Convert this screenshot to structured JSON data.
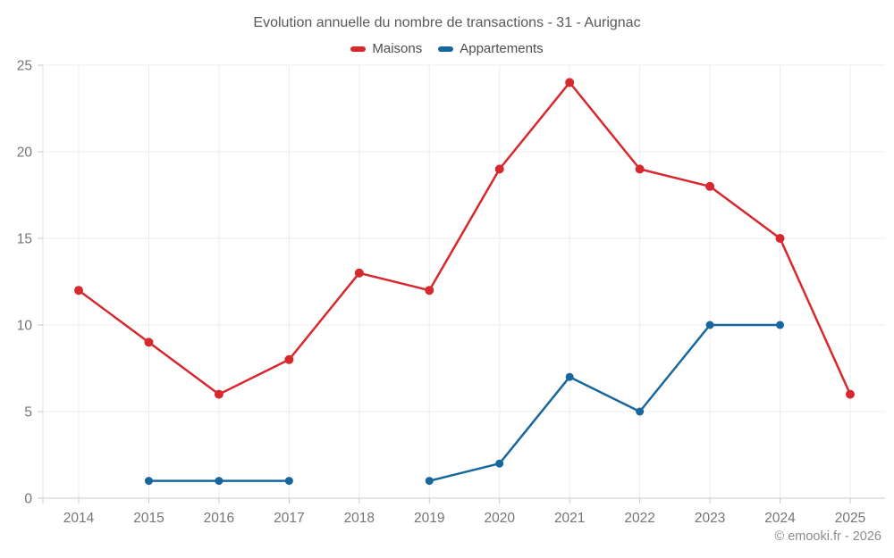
{
  "header": {
    "title": "Evolution annuelle du nombre de transactions - 31 - Aurignac"
  },
  "legend": [
    {
      "label": "Maisons",
      "color": "#d7282e"
    },
    {
      "label": "Appartements",
      "color": "#17679e"
    }
  ],
  "footer": {
    "copyright": "© emooki.fr - 2026"
  },
  "colors": {
    "grid": "#ececec",
    "axis_line": "#c9c9c9",
    "left_boundary": "#e0e0e0",
    "tick": "#c9c9c9",
    "tick_label": "#757575",
    "maisons_red": "#d7282e",
    "appartements_blue": "#17679e"
  },
  "chart_data": {
    "type": "line",
    "title": "Evolution annuelle du nombre de transactions - 31 - Aurignac",
    "xlabel": "",
    "ylabel": "",
    "x": [
      2014,
      2015,
      2016,
      2017,
      2018,
      2019,
      2020,
      2021,
      2022,
      2023,
      2024,
      2025
    ],
    "series": [
      {
        "name": "Maisons",
        "color": "#d7282e",
        "values": [
          12,
          9,
          6,
          8,
          13,
          12,
          19,
          24,
          19,
          18,
          15,
          6
        ]
      },
      {
        "name": "Appartements",
        "color": "#17679e",
        "values": [
          null,
          1,
          1,
          1,
          null,
          1,
          2,
          7,
          5,
          10,
          10,
          null
        ]
      }
    ],
    "ylim": [
      0,
      25
    ],
    "yticks": [
      0,
      5,
      10,
      15,
      20,
      25
    ],
    "grid": true,
    "legend_position": "top"
  }
}
